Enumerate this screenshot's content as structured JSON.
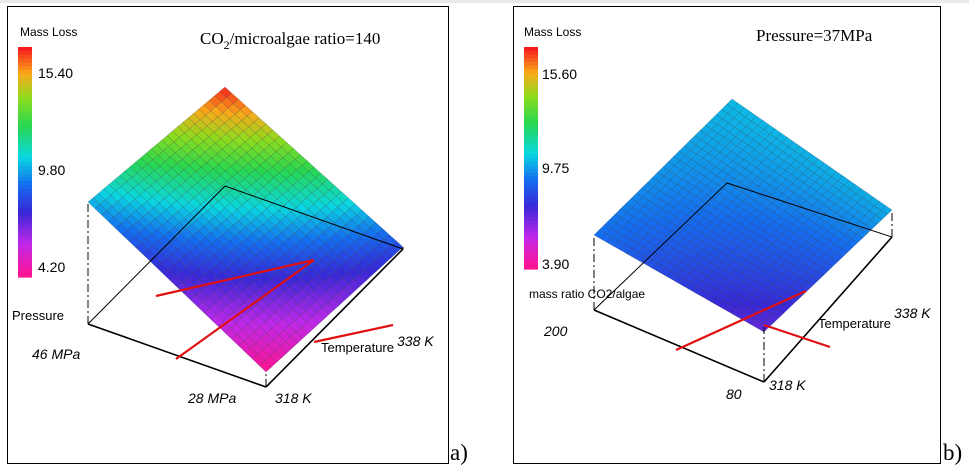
{
  "chart_data": [
    {
      "type": "surface3d",
      "panel_label": "a)",
      "title": "CO₂/microalgae ratio=140",
      "title_parts": {
        "pre": "CO",
        "sub": "2",
        "post": "/microalgae ratio=140"
      },
      "colorbar_title": "Mass Loss",
      "colorbar_ticks": [
        "15.40",
        "9.80",
        "4.20"
      ],
      "colorbar_range": [
        4.2,
        15.4
      ],
      "x_axis": {
        "label": "Pressure",
        "range_labels": [
          "46 MPa",
          "28 MPa"
        ],
        "range": [
          28,
          46
        ]
      },
      "y_axis": {
        "label": "Temperature",
        "range_labels": [
          "318 K",
          "338 K"
        ],
        "range": [
          318,
          338
        ]
      },
      "corner_values": {
        "p46_t338": 15.4,
        "p28_t338": 8.0,
        "p46_t318": 9.5,
        "p28_t318": 4.2
      },
      "accent_colors": {
        "crosshair": "#e01010"
      }
    },
    {
      "type": "surface3d",
      "panel_label": "b)",
      "title": "Pressure=37MPa",
      "colorbar_title": "Mass Loss",
      "colorbar_ticks": [
        "15.60",
        "9.75",
        "3.90"
      ],
      "colorbar_range": [
        3.9,
        15.6
      ],
      "x_axis": {
        "label": "mass ratio CO2/algae",
        "range_labels": [
          "200",
          "80"
        ],
        "range": [
          80,
          200
        ]
      },
      "y_axis": {
        "label": "Temperature",
        "range_labels": [
          "318 K",
          "338 K"
        ],
        "range": [
          318,
          338
        ]
      },
      "corner_values": {
        "r200_t338": 9.6,
        "r80_t338": 9.4,
        "r200_t318": 8.6,
        "r80_t318": 6.6
      },
      "accent_colors": {
        "crosshair": "#e01010"
      }
    }
  ]
}
